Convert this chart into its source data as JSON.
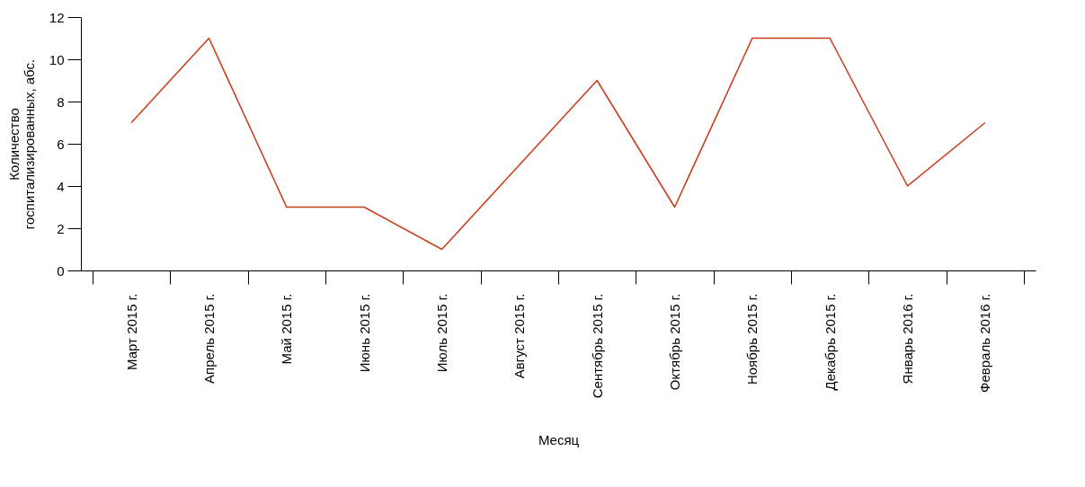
{
  "chart_data": {
    "type": "line",
    "xlabel": "Месяц",
    "ylabel": "Количество\nгоспитализированных, абс.",
    "categories": [
      "Март 2015 г.",
      "Апрель 2015 г.",
      "Май 2015 г.",
      "Июнь 2015 г.",
      "Июль 2015 г.",
      "Август 2015 г.",
      "Сентябрь 2015 г.",
      "Октябрь 2015 г.",
      "Ноябрь 2015 г.",
      "Декабрь 2015 г.",
      "Январь 2016 г.",
      "Февраль 2016 г."
    ],
    "series": [
      {
        "color": "#c8401e",
        "values": [
          7,
          11,
          3,
          3,
          1,
          5,
          9,
          3,
          11,
          11,
          4,
          7
        ]
      }
    ],
    "ylim": [
      0,
      12
    ],
    "yticks": [
      0,
      2,
      4,
      6,
      8,
      10,
      12
    ],
    "grid": false,
    "legend": false,
    "marker": "none",
    "line_style": "solid"
  }
}
